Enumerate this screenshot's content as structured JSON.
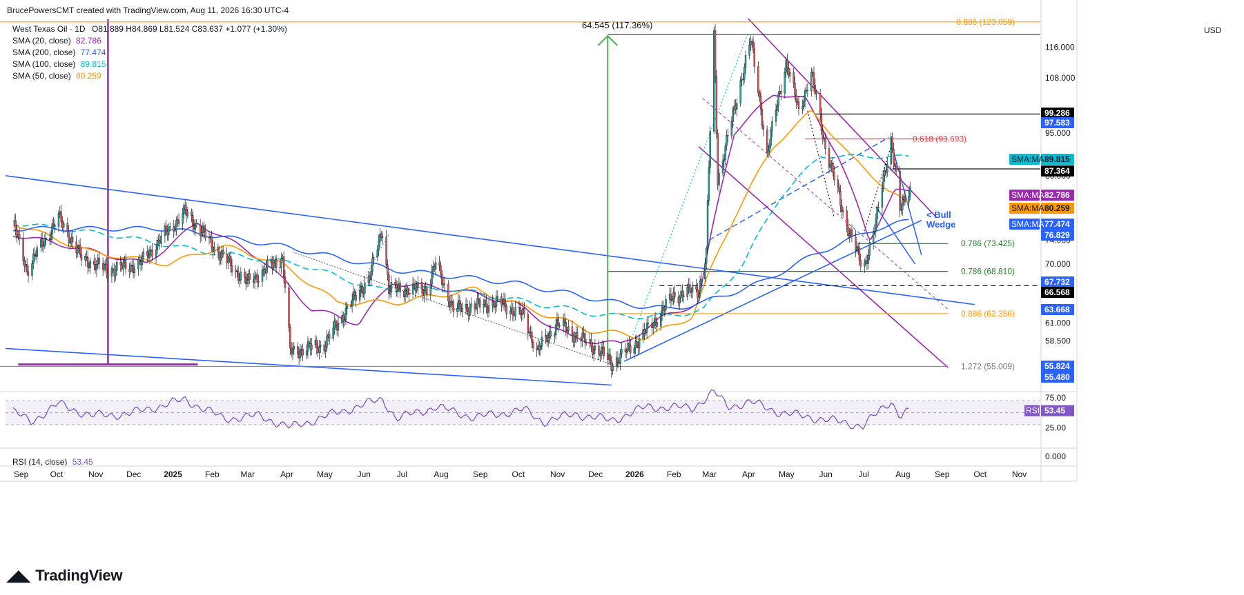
{
  "header": {
    "author_line": "BrucePowersCMT created with TradingView.com, Aug 11, 2026 16:30 UTC-4",
    "symbol": "West Texas Oil · 1D",
    "ohlc": "O81.889 H84.869 L81.524 C83.637 +1.077 (+1.30%)"
  },
  "indicators": [
    {
      "label": "SMA (20, close)",
      "value": "82.786",
      "color": "#9c27b0"
    },
    {
      "label": "SMA (200, close)",
      "value": "77.474",
      "color": "#2962ff"
    },
    {
      "label": "SMA (100, close)",
      "value": "89.815",
      "color": "#00bcd4"
    },
    {
      "label": "SMA (50, close)",
      "value": "80.259",
      "color": "#ff9800"
    }
  ],
  "currency": "USD",
  "rsi": {
    "label": "RSI (14, close)",
    "value": "53.45",
    "badge": "RSI",
    "color": "#7e57c2",
    "ticks": [
      "75.00",
      "25.00",
      "0.000"
    ]
  },
  "annotations": {
    "move": "64.545 (117.36%)",
    "wedge_line1": "< Bull",
    "wedge_line2": "Wedge"
  },
  "fib_levels": [
    {
      "label": "0.886 (123.059)",
      "color": "#ff9800"
    },
    {
      "label": "0.618 (93.693)",
      "color": "#f23645"
    },
    {
      "label": "0.786 (73.425)",
      "color": "#2e7d32"
    },
    {
      "label": "0.786 (68.810)",
      "color": "#2e7d32"
    },
    {
      "label": "0.886 (62.356)",
      "color": "#ff9800"
    },
    {
      "label": "1.272 (55.009)",
      "color": "#787b86"
    }
  ],
  "price_badges": [
    {
      "text": "99.286",
      "bg": "#000000",
      "fg": "#ffffff"
    },
    {
      "text": "97.583",
      "bg": "#2962ff",
      "fg": "#ffffff"
    },
    {
      "text": "89.815",
      "bg": "#00bcd4",
      "fg": "#131722",
      "tag": "SMA:MA"
    },
    {
      "text": "87.364",
      "bg": "#000000",
      "fg": "#ffffff"
    },
    {
      "text": "82.786",
      "bg": "#9c27b0",
      "fg": "#ffffff",
      "tag": "SMA:MA"
    },
    {
      "text": "80.259",
      "bg": "#ff9800",
      "fg": "#131722",
      "tag": "SMA:MA"
    },
    {
      "text": "77.474",
      "bg": "#2962ff",
      "fg": "#ffffff",
      "tag": "SMA:MA"
    },
    {
      "text": "76.829",
      "bg": "#2962ff",
      "fg": "#ffffff"
    },
    {
      "text": "67.732",
      "bg": "#2962ff",
      "fg": "#ffffff"
    },
    {
      "text": "66.568",
      "bg": "#000000",
      "fg": "#ffffff"
    },
    {
      "text": "63.668",
      "bg": "#2962ff",
      "fg": "#ffffff"
    },
    {
      "text": "55.824",
      "bg": "#2962ff",
      "fg": "#ffffff"
    },
    {
      "text": "55.480",
      "bg": "#2962ff",
      "fg": "#ffffff"
    }
  ],
  "chart_data": {
    "type": "candlestick",
    "symbol": "West Texas Oil",
    "interval": "1D",
    "x_ticks": [
      "Sep",
      "Oct",
      "Nov",
      "Dec",
      "2025",
      "Feb",
      "Mar",
      "Apr",
      "May",
      "Jun",
      "Jul",
      "Aug",
      "Sep",
      "Oct",
      "Nov",
      "Dec",
      "2026",
      "Feb",
      "Mar",
      "Apr",
      "May",
      "Jun",
      "Jul",
      "Aug",
      "Sep",
      "Oct",
      "Nov"
    ],
    "y_ticks": [
      "116.000",
      "108.000",
      "95.000",
      "86.000",
      "74.000",
      "70.000",
      "61.000",
      "58.500",
      "53.600"
    ],
    "y_scale": "log",
    "ylim": [
      52,
      125
    ],
    "price_path": [
      [
        "2024-09-01",
        77
      ],
      [
        "2024-09-12",
        69
      ],
      [
        "2024-10-07",
        78
      ],
      [
        "2024-10-25",
        71
      ],
      [
        "2024-11-15",
        69
      ],
      [
        "2024-12-10",
        70
      ],
      [
        "2025-01-15",
        79
      ],
      [
        "2025-02-10",
        72
      ],
      [
        "2025-03-05",
        67
      ],
      [
        "2025-04-02",
        71
      ],
      [
        "2025-04-08",
        57
      ],
      [
        "2025-05-05",
        58
      ],
      [
        "2025-06-10",
        68
      ],
      [
        "2025-06-20",
        76
      ],
      [
        "2025-06-25",
        66
      ],
      [
        "2025-07-25",
        66
      ],
      [
        "2025-08-01",
        70
      ],
      [
        "2025-08-15",
        63
      ],
      [
        "2025-09-20",
        64
      ],
      [
        "2025-10-10",
        62
      ],
      [
        "2025-10-20",
        57
      ],
      [
        "2025-11-05",
        61
      ],
      [
        "2025-12-10",
        57
      ],
      [
        "2025-12-18",
        55.5
      ],
      [
        "2026-01-05",
        58
      ],
      [
        "2026-01-20",
        61
      ],
      [
        "2026-02-05",
        65
      ],
      [
        "2026-02-25",
        66
      ],
      [
        "2026-03-03",
        72
      ],
      [
        "2026-03-09",
        119
      ],
      [
        "2026-03-12",
        85
      ],
      [
        "2026-03-25",
        100
      ],
      [
        "2026-04-07",
        118
      ],
      [
        "2026-04-20",
        90
      ],
      [
        "2026-05-05",
        112
      ],
      [
        "2026-05-15",
        100
      ],
      [
        "2026-05-25",
        109
      ],
      [
        "2026-06-05",
        92
      ],
      [
        "2026-06-20",
        78
      ],
      [
        "2026-07-05",
        69
      ],
      [
        "2026-07-15",
        77
      ],
      [
        "2026-07-27",
        93.7
      ],
      [
        "2026-08-03",
        79
      ],
      [
        "2026-08-07",
        82
      ],
      [
        "2026-08-11",
        83.6
      ]
    ],
    "series": [
      {
        "name": "SMA (20, close)",
        "last": 82.786,
        "color": "#9c27b0",
        "points": [
          [
            "2024-09-01",
            75
          ],
          [
            "2024-10-15",
            73
          ],
          [
            "2024-12-15",
            70
          ],
          [
            "2025-01-25",
            77
          ],
          [
            "2025-03-15",
            71
          ],
          [
            "2025-04-25",
            63
          ],
          [
            "2025-06-01",
            61
          ],
          [
            "2025-06-28",
            67
          ],
          [
            "2025-08-15",
            66
          ],
          [
            "2025-10-01",
            64
          ],
          [
            "2025-11-15",
            59
          ],
          [
            "2025-12-25",
            58
          ],
          [
            "2026-01-30",
            62
          ],
          [
            "2026-02-25",
            64
          ],
          [
            "2026-03-25",
            95
          ],
          [
            "2026-04-25",
            104
          ],
          [
            "2026-05-20",
            103
          ],
          [
            "2026-06-15",
            90
          ],
          [
            "2026-07-10",
            74
          ],
          [
            "2026-07-30",
            83
          ],
          [
            "2026-08-11",
            82.8
          ]
        ]
      },
      {
        "name": "SMA (50, close)",
        "last": 80.259,
        "color": "#ff9800",
        "points": [
          [
            "2024-09-01",
            77
          ],
          [
            "2024-11-01",
            72
          ],
          [
            "2025-01-01",
            70
          ],
          [
            "2025-02-15",
            73
          ],
          [
            "2025-04-01",
            70
          ],
          [
            "2025-05-15",
            64
          ],
          [
            "2025-07-01",
            64
          ],
          [
            "2025-09-01",
            66
          ],
          [
            "2025-10-15",
            63
          ],
          [
            "2025-12-01",
            60
          ],
          [
            "2026-01-15",
            59
          ],
          [
            "2026-02-20",
            62
          ],
          [
            "2026-03-25",
            78
          ],
          [
            "2026-04-25",
            92
          ],
          [
            "2026-05-25",
            100
          ],
          [
            "2026-06-25",
            90
          ],
          [
            "2026-07-25",
            83
          ],
          [
            "2026-08-11",
            80.3
          ]
        ]
      },
      {
        "name": "SMA (100, close)",
        "last": 89.815,
        "color": "#00bcd4",
        "points": [
          [
            "2024-09-01",
            77
          ],
          [
            "2024-11-15",
            75
          ],
          [
            "2025-02-01",
            72
          ],
          [
            "2025-04-15",
            70
          ],
          [
            "2025-06-15",
            66
          ],
          [
            "2025-08-15",
            66
          ],
          [
            "2025-10-15",
            64
          ],
          [
            "2025-12-15",
            62
          ],
          [
            "2026-02-01",
            62
          ],
          [
            "2026-03-01",
            63
          ],
          [
            "2026-04-01",
            70
          ],
          [
            "2026-05-01",
            82
          ],
          [
            "2026-06-01",
            90
          ],
          [
            "2026-07-01",
            90
          ],
          [
            "2026-08-11",
            89.8
          ]
        ]
      },
      {
        "name": "SMA (200, close)",
        "last": 77.474,
        "color": "#2962ff",
        "points": [
          [
            "2024-09-01",
            76
          ],
          [
            "2025-01-01",
            76
          ],
          [
            "2025-04-01",
            73
          ],
          [
            "2025-07-01",
            69
          ],
          [
            "2025-10-01",
            67
          ],
          [
            "2025-12-20",
            64
          ],
          [
            "2026-02-01",
            63
          ],
          [
            "2026-03-01",
            64
          ],
          [
            "2026-04-15",
            67
          ],
          [
            "2026-06-01",
            72
          ],
          [
            "2026-07-15",
            76
          ],
          [
            "2026-08-11",
            77.5
          ]
        ]
      }
    ],
    "rsi_series": {
      "name": "RSI (14, close)",
      "last": 53.45,
      "points": [
        [
          "2024-09-01",
          52
        ],
        [
          "2024-09-15",
          35
        ],
        [
          "2024-10-07",
          65
        ],
        [
          "2024-11-01",
          45
        ],
        [
          "2024-12-01",
          48
        ],
        [
          "2025-01-15",
          72
        ],
        [
          "2025-02-15",
          40
        ],
        [
          "2025-03-15",
          45
        ],
        [
          "2025-04-08",
          25
        ],
        [
          "2025-05-15",
          50
        ],
        [
          "2025-06-20",
          73
        ],
        [
          "2025-07-01",
          40
        ],
        [
          "2025-08-01",
          60
        ],
        [
          "2025-09-01",
          42
        ],
        [
          "2025-10-10",
          55
        ],
        [
          "2025-10-25",
          35
        ],
        [
          "2025-11-20",
          48
        ],
        [
          "2025-12-18",
          37
        ],
        [
          "2026-01-15",
          60
        ],
        [
          "2026-02-20",
          58
        ],
        [
          "2026-03-09",
          85
        ],
        [
          "2026-03-20",
          60
        ],
        [
          "2026-04-07",
          68
        ],
        [
          "2026-05-01",
          50
        ],
        [
          "2026-06-01",
          40
        ],
        [
          "2026-07-05",
          28
        ],
        [
          "2026-07-27",
          70
        ],
        [
          "2026-08-03",
          45
        ],
        [
          "2026-08-11",
          53.45
        ]
      ]
    }
  }
}
